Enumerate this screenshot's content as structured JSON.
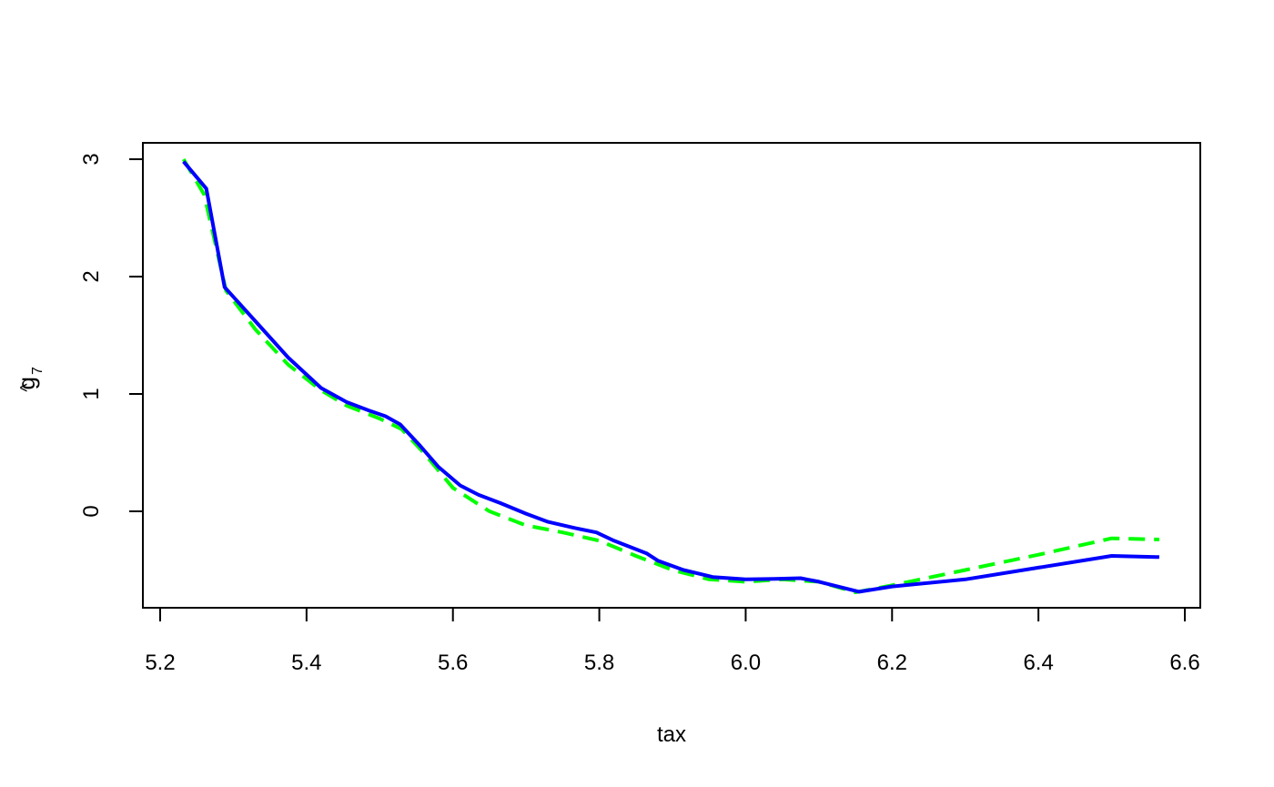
{
  "chart_data": {
    "type": "line",
    "title": "",
    "xlabel": "tax",
    "ylabel": {
      "base": "g",
      "hat": "^",
      "subscript": "7"
    },
    "xlim": [
      5.2,
      6.6
    ],
    "ylim": [
      -0.82,
      3.1
    ],
    "x_ticks": [
      5.2,
      5.4,
      5.6,
      5.8,
      6.0,
      6.2,
      6.4,
      6.6
    ],
    "x_tick_labels": [
      "5.2",
      "5.4",
      "5.6",
      "5.8",
      "6.0",
      "6.2",
      "6.4",
      "6.6"
    ],
    "y_ticks": [
      0,
      1,
      2,
      3
    ],
    "y_tick_labels": [
      "0",
      "1",
      "2",
      "3"
    ],
    "grid": false,
    "legend": "none",
    "series": [
      {
        "color": "#0000FF",
        "style": "solid",
        "x": [
          5.232,
          5.263,
          5.288,
          5.33,
          5.375,
          5.42,
          5.455,
          5.485,
          5.508,
          5.528,
          5.555,
          5.58,
          5.61,
          5.635,
          5.665,
          5.7,
          5.73,
          5.765,
          5.796,
          5.82,
          5.865,
          5.88,
          5.915,
          5.955,
          6.0,
          6.04,
          6.075,
          6.1,
          6.155,
          6.2,
          6.3,
          6.4,
          6.5,
          6.565
        ],
        "y": [
          2.98,
          2.75,
          1.91,
          1.62,
          1.31,
          1.05,
          0.93,
          0.86,
          0.81,
          0.74,
          0.56,
          0.38,
          0.22,
          0.14,
          0.07,
          -0.02,
          -0.09,
          -0.14,
          -0.18,
          -0.25,
          -0.36,
          -0.42,
          -0.5,
          -0.56,
          -0.58,
          -0.575,
          -0.57,
          -0.6,
          -0.685,
          -0.64,
          -0.58,
          -0.48,
          -0.38,
          -0.39
        ]
      },
      {
        "color": "#00FF00",
        "style": "dashed",
        "x": [
          5.232,
          5.26,
          5.29,
          5.33,
          5.375,
          5.42,
          5.455,
          5.5,
          5.53,
          5.56,
          5.6,
          5.65,
          5.7,
          5.75,
          5.8,
          5.85,
          5.9,
          5.95,
          6.0,
          6.05,
          6.1,
          6.15,
          6.2,
          6.3,
          6.4,
          6.5,
          6.565
        ],
        "y": [
          3.0,
          2.7,
          1.88,
          1.55,
          1.25,
          1.03,
          0.9,
          0.79,
          0.7,
          0.5,
          0.2,
          0.0,
          -0.12,
          -0.18,
          -0.25,
          -0.38,
          -0.5,
          -0.58,
          -0.6,
          -0.58,
          -0.6,
          -0.69,
          -0.63,
          -0.5,
          -0.37,
          -0.23,
          -0.24
        ]
      }
    ]
  }
}
